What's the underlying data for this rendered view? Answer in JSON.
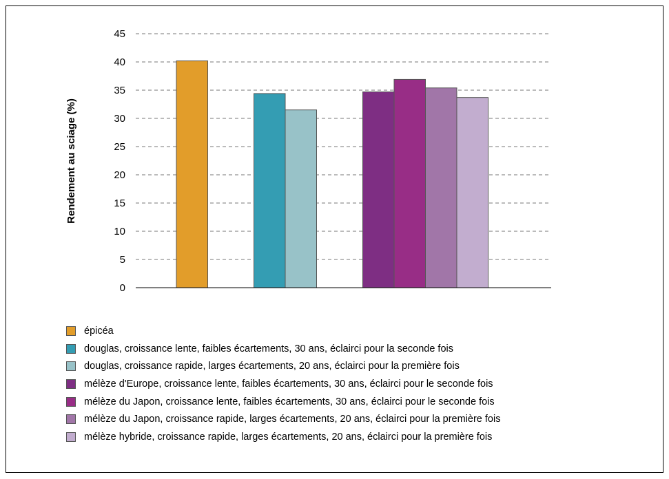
{
  "chart_data": {
    "type": "bar",
    "title": "",
    "xlabel": "",
    "ylabel": "Rendement au sciage (%)",
    "ylim": [
      0,
      45
    ],
    "yticks": [
      0,
      5,
      10,
      15,
      20,
      25,
      30,
      35,
      40,
      45
    ],
    "grid": "horizontal dashed",
    "legend_placement": "bottom",
    "groups": [
      {
        "series": [
          0
        ]
      },
      {
        "series": [
          1,
          2
        ]
      },
      {
        "series": [
          3,
          4,
          5,
          6
        ]
      }
    ],
    "series": [
      {
        "name": "épicéa",
        "value": 40.2,
        "color": "#E29D2A"
      },
      {
        "name": "douglas, croissance lente, faibles écartements, 30 ans, éclairci pour la seconde fois",
        "value": 34.4,
        "color": "#349DB3"
      },
      {
        "name": "douglas, croissance rapide, larges écartements, 20 ans, éclairci pour la première fois",
        "value": 31.5,
        "color": "#98C2C8"
      },
      {
        "name": "mélèze d'Europe, croissance lente, faibles écartements, 30 ans, éclairci pour le seconde fois",
        "value": 34.7,
        "color": "#7E2E83"
      },
      {
        "name": "mélèze du Japon, croissance lente, faibles écartements, 30 ans, éclairci pour le seconde fois",
        "value": 36.9,
        "color": "#982D86"
      },
      {
        "name": "mélèze du Japon, croissance rapide, larges écartements, 20 ans, éclairci pour la première fois",
        "value": 35.4,
        "color": "#A176A8"
      },
      {
        "name": "mélèze hybride, croissance rapide, larges écartements, 20 ans, éclairci pour la première fois",
        "value": 33.7,
        "color": "#C2ADCF"
      }
    ]
  }
}
